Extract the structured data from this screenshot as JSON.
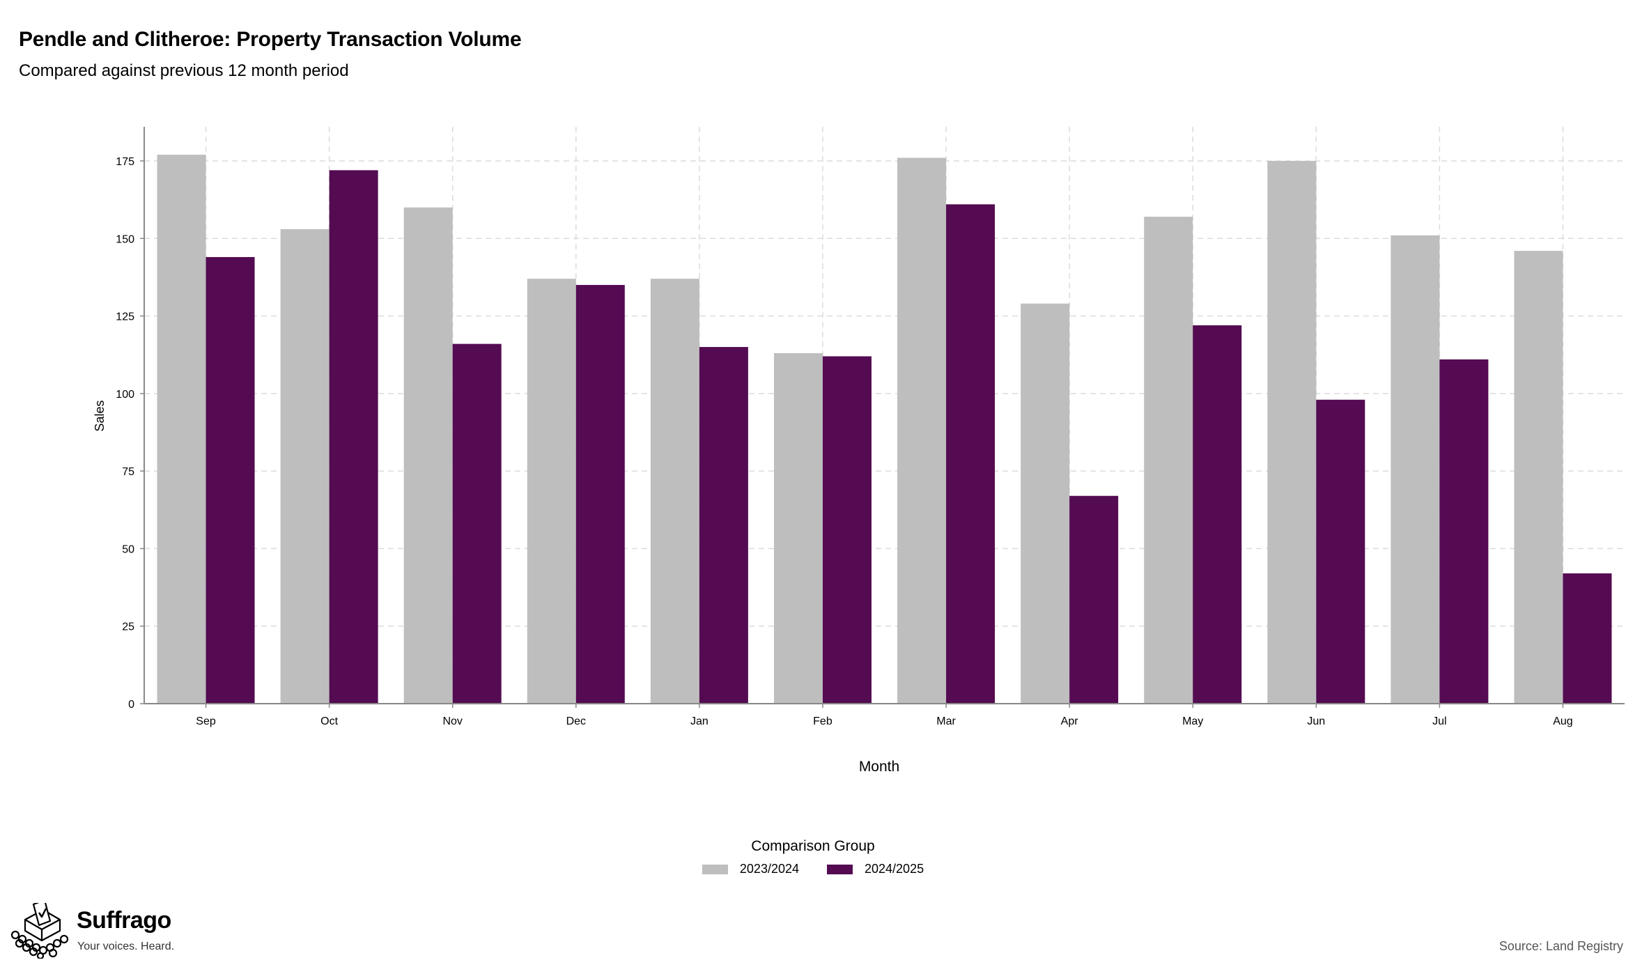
{
  "chart_data": {
    "type": "bar",
    "title": "Pendle and Clitheroe: Property Transaction Volume",
    "subtitle": "Compared against previous 12 month period",
    "xlabel": "Month",
    "ylabel": "Sales",
    "categories": [
      "Sep",
      "Oct",
      "Nov",
      "Dec",
      "Jan",
      "Feb",
      "Mar",
      "Apr",
      "May",
      "Jun",
      "Jul",
      "Aug"
    ],
    "series": [
      {
        "name": "2023/2024",
        "color": "#bebebe",
        "values": [
          177,
          153,
          160,
          137,
          137,
          113,
          176,
          129,
          157,
          175,
          151,
          146
        ]
      },
      {
        "name": "2024/2025",
        "color": "#540b52",
        "values": [
          144,
          172,
          116,
          135,
          115,
          112,
          161,
          67,
          122,
          98,
          111,
          42
        ]
      }
    ],
    "ylim": [
      0,
      186
    ],
    "yticks": [
      0,
      25,
      50,
      75,
      100,
      125,
      150,
      175
    ],
    "grid": true,
    "legend_title": "Comparison Group",
    "legend_position": "bottom"
  },
  "branding": {
    "name": "Suffrago",
    "tagline": "Your voices. Heard.",
    "logo_icon": "ballot-box-icon"
  },
  "source": "Source: Land Registry"
}
